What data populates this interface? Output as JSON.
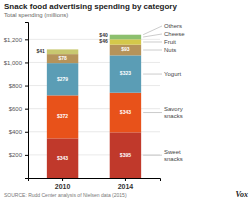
{
  "chart_data": {
    "type": "bar",
    "stacked": true,
    "data_labels": true,
    "grid": true,
    "title": "Snack food advertising spending by category",
    "subtitle": "Total spending (millions)",
    "source": "SOURCE: Rudd Center analysis of Nielsen data (2015)",
    "annotations": [
      "Vox"
    ],
    "categories": [
      "2010",
      "2014"
    ],
    "series": [
      {
        "name": "Sweet\nsnacks",
        "color": "#c0392b",
        "values": [
          343,
          395
        ],
        "value_labels": [
          "$343",
          "$395"
        ]
      },
      {
        "name": "Savory\nsnacks",
        "color": "#e8521a",
        "values": [
          372,
          343
        ],
        "value_labels": [
          "$372",
          "$343"
        ]
      },
      {
        "name": "Yogurt",
        "color": "#5b9db5",
        "values": [
          279,
          323
        ],
        "value_labels": [
          "$279",
          "$323"
        ]
      },
      {
        "name": "Nuts",
        "color": "#b5935a",
        "values": [
          78,
          93
        ],
        "value_labels": [
          "$78",
          "$93"
        ]
      },
      {
        "name": "Fruit",
        "color": "#d4c84a",
        "values": [
          0,
          46
        ],
        "value_labels": [
          null,
          "$46"
        ]
      },
      {
        "name": "Cheese",
        "color": "#8cbf6e",
        "values": [
          0,
          40
        ],
        "value_labels": [
          null,
          "$40"
        ]
      },
      {
        "name": "Others",
        "color": "#c8c870",
        "values": [
          41,
          0
        ],
        "value_labels": [
          "$41",
          null
        ]
      }
    ],
    "ylim": [
      0,
      1350
    ],
    "yticks": [
      {
        "value": 200,
        "label": "$200"
      },
      {
        "value": 400,
        "label": "$400"
      },
      {
        "value": 600,
        "label": "$600"
      },
      {
        "value": 800,
        "label": "$800"
      },
      {
        "value": 1000,
        "label": "$1,000"
      },
      {
        "value": 1200,
        "label": "$1,200"
      }
    ]
  }
}
